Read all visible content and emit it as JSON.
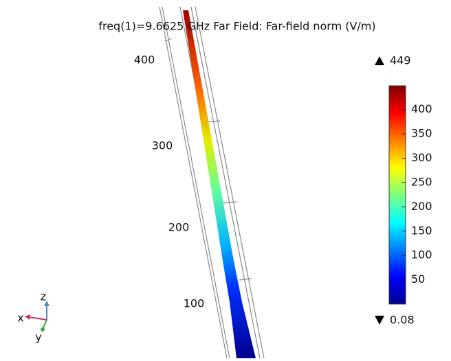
{
  "title": "freq(1)=9.6625 GHz   Far Field: Far-field norm (V/m)",
  "scale_labels": [
    400,
    300,
    200,
    100
  ],
  "colorbar": {
    "max": 449,
    "min": 0.08,
    "ticks": [
      50,
      100,
      150,
      200,
      250,
      300,
      350,
      400
    ]
  },
  "triad": {
    "x": "x",
    "y": "y",
    "z": "z"
  }
}
